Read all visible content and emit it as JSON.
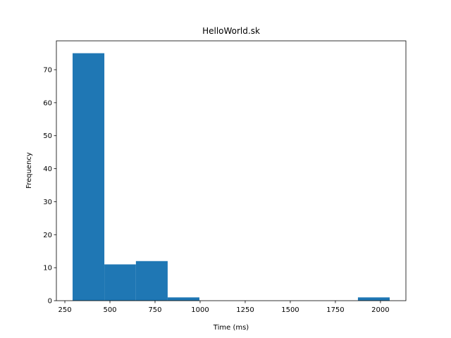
{
  "chart_data": {
    "type": "histogram",
    "title": "HelloWorld.sk",
    "x_label": "Time (ms)",
    "y_label": "Frequency",
    "bins": [
      293,
      469,
      644,
      820,
      996,
      1172,
      1348,
      1523,
      1699,
      1875,
      2051
    ],
    "values": [
      75,
      11,
      12,
      1,
      0,
      0,
      0,
      0,
      0,
      1
    ],
    "color": "#1f77b4",
    "xlim": [
      203,
      2141
    ],
    "xticks": [
      250,
      500,
      750,
      1000,
      1250,
      1500,
      1750,
      2000
    ],
    "ylim": [
      0,
      78.75
    ],
    "yticks": [
      0,
      10,
      20,
      30,
      40,
      50,
      60,
      70
    ],
    "grid": false
  }
}
